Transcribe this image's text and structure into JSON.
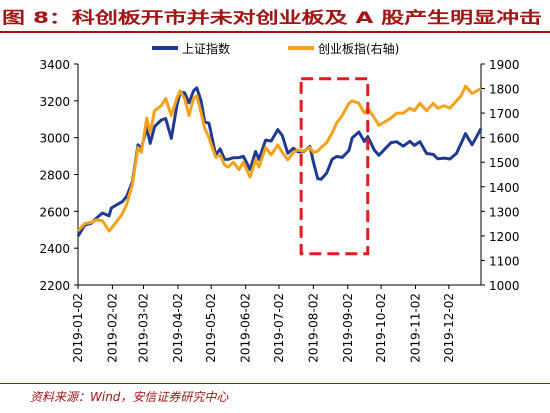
{
  "figure": {
    "label": "图 8：",
    "title": "科创板开市并未对创业板及 A 股产生明显冲击"
  },
  "source": "资料来源：Wind，安信证券研究中心",
  "colors": {
    "series_left": "#1f3a93",
    "series_right": "#f5a21b",
    "highlight_box": "#e41a1c",
    "title_accent": "#a31515"
  },
  "chart_data": {
    "type": "line",
    "x_ticks": [
      "2019-01-02",
      "2019-02-02",
      "2019-03-02",
      "2019-04-02",
      "2019-05-02",
      "2019-06-02",
      "2019-07-02",
      "2019-08-02",
      "2019-09-02",
      "2019-10-02",
      "2019-11-02",
      "2019-12-02"
    ],
    "y_left": {
      "ylim": [
        2200,
        3400
      ],
      "ticks": [
        2200,
        2400,
        2600,
        2800,
        3000,
        3200,
        3400
      ]
    },
    "y_right": {
      "ylim": [
        1000,
        1900
      ],
      "ticks": [
        1000,
        1100,
        1200,
        1300,
        1400,
        1500,
        1600,
        1700,
        1800,
        1900
      ]
    },
    "legend": {
      "position": "top",
      "entries": [
        "上证指数",
        "创业板指(右轴)"
      ]
    },
    "grid": false,
    "highlight": {
      "x_range": [
        "2019-07-22",
        "2019-09-20"
      ],
      "y_left_range": [
        2370,
        3320
      ]
    },
    "series": [
      {
        "name": "上证指数",
        "axis": "left",
        "color": "#1f3a93",
        "points": [
          [
            "2019-01-02",
            2465
          ],
          [
            "2019-01-08",
            2526
          ],
          [
            "2019-01-14",
            2535
          ],
          [
            "2019-01-18",
            2560
          ],
          [
            "2019-01-24",
            2591
          ],
          [
            "2019-01-30",
            2575
          ],
          [
            "2019-02-01",
            2618
          ],
          [
            "2019-02-11",
            2653
          ],
          [
            "2019-02-15",
            2682
          ],
          [
            "2019-02-20",
            2761
          ],
          [
            "2019-02-25",
            2961
          ],
          [
            "2019-02-28",
            2941
          ],
          [
            "2019-03-05",
            3055
          ],
          [
            "2019-03-08",
            2969
          ],
          [
            "2019-03-12",
            3060
          ],
          [
            "2019-03-18",
            3096
          ],
          [
            "2019-03-22",
            3104
          ],
          [
            "2019-03-27",
            2996
          ],
          [
            "2019-04-01",
            3171
          ],
          [
            "2019-04-04",
            3246
          ],
          [
            "2019-04-08",
            3244
          ],
          [
            "2019-04-12",
            3189
          ],
          [
            "2019-04-16",
            3254
          ],
          [
            "2019-04-19",
            3270
          ],
          [
            "2019-04-23",
            3198
          ],
          [
            "2019-04-26",
            3086
          ],
          [
            "2019-04-30",
            3078
          ],
          [
            "2019-05-06",
            2906
          ],
          [
            "2019-05-10",
            2939
          ],
          [
            "2019-05-14",
            2883
          ],
          [
            "2019-05-17",
            2882
          ],
          [
            "2019-05-22",
            2891
          ],
          [
            "2019-05-27",
            2892
          ],
          [
            "2019-05-31",
            2899
          ],
          [
            "2019-06-06",
            2827
          ],
          [
            "2019-06-11",
            2925
          ],
          [
            "2019-06-14",
            2882
          ],
          [
            "2019-06-20",
            2987
          ],
          [
            "2019-06-25",
            2982
          ],
          [
            "2019-07-01",
            3044
          ],
          [
            "2019-07-05",
            3011
          ],
          [
            "2019-07-10",
            2915
          ],
          [
            "2019-07-15",
            2942
          ],
          [
            "2019-07-19",
            2924
          ],
          [
            "2019-07-24",
            2923
          ],
          [
            "2019-07-30",
            2952
          ],
          [
            "2019-08-02",
            2868
          ],
          [
            "2019-08-06",
            2777
          ],
          [
            "2019-08-09",
            2774
          ],
          [
            "2019-08-14",
            2808
          ],
          [
            "2019-08-19",
            2883
          ],
          [
            "2019-08-23",
            2898
          ],
          [
            "2019-08-28",
            2893
          ],
          [
            "2019-09-03",
            2930
          ],
          [
            "2019-09-06",
            2999
          ],
          [
            "2019-09-12",
            3031
          ],
          [
            "2019-09-17",
            2979
          ],
          [
            "2019-09-20",
            3006
          ],
          [
            "2019-09-26",
            2932
          ],
          [
            "2019-09-30",
            2905
          ],
          [
            "2019-10-11",
            2973
          ],
          [
            "2019-10-16",
            2978
          ],
          [
            "2019-10-22",
            2954
          ],
          [
            "2019-10-28",
            2980
          ],
          [
            "2019-11-01",
            2958
          ],
          [
            "2019-11-06",
            2978
          ],
          [
            "2019-11-12",
            2914
          ],
          [
            "2019-11-18",
            2909
          ],
          [
            "2019-11-22",
            2885
          ],
          [
            "2019-11-28",
            2889
          ],
          [
            "2019-12-03",
            2884
          ],
          [
            "2019-12-09",
            2915
          ],
          [
            "2019-12-13",
            2968
          ],
          [
            "2019-12-17",
            3022
          ],
          [
            "2019-12-23",
            2962
          ],
          [
            "2019-12-27",
            3005
          ],
          [
            "2019-12-31",
            3050
          ]
        ]
      },
      {
        "name": "创业板指(右轴)",
        "axis": "right",
        "color": "#f5a21b",
        "points": [
          [
            "2019-01-02",
            1220
          ],
          [
            "2019-01-08",
            1250
          ],
          [
            "2019-01-14",
            1255
          ],
          [
            "2019-01-18",
            1265
          ],
          [
            "2019-01-24",
            1262
          ],
          [
            "2019-01-30",
            1220
          ],
          [
            "2019-02-01",
            1230
          ],
          [
            "2019-02-11",
            1290
          ],
          [
            "2019-02-15",
            1330
          ],
          [
            "2019-02-20",
            1410
          ],
          [
            "2019-02-25",
            1560
          ],
          [
            "2019-02-28",
            1540
          ],
          [
            "2019-03-05",
            1680
          ],
          [
            "2019-03-08",
            1620
          ],
          [
            "2019-03-12",
            1710
          ],
          [
            "2019-03-18",
            1730
          ],
          [
            "2019-03-22",
            1760
          ],
          [
            "2019-03-27",
            1690
          ],
          [
            "2019-04-01",
            1760
          ],
          [
            "2019-04-04",
            1790
          ],
          [
            "2019-04-08",
            1760
          ],
          [
            "2019-04-12",
            1690
          ],
          [
            "2019-04-16",
            1760
          ],
          [
            "2019-04-19",
            1770
          ],
          [
            "2019-04-23",
            1700
          ],
          [
            "2019-04-26",
            1640
          ],
          [
            "2019-04-30",
            1600
          ],
          [
            "2019-05-06",
            1520
          ],
          [
            "2019-05-10",
            1530
          ],
          [
            "2019-05-14",
            1490
          ],
          [
            "2019-05-17",
            1480
          ],
          [
            "2019-05-22",
            1500
          ],
          [
            "2019-05-27",
            1470
          ],
          [
            "2019-05-31",
            1500
          ],
          [
            "2019-06-06",
            1440
          ],
          [
            "2019-06-11",
            1510
          ],
          [
            "2019-06-14",
            1480
          ],
          [
            "2019-06-20",
            1560
          ],
          [
            "2019-06-25",
            1530
          ],
          [
            "2019-07-01",
            1570
          ],
          [
            "2019-07-05",
            1540
          ],
          [
            "2019-07-10",
            1510
          ],
          [
            "2019-07-15",
            1540
          ],
          [
            "2019-07-19",
            1550
          ],
          [
            "2019-07-24",
            1545
          ],
          [
            "2019-07-30",
            1560
          ],
          [
            "2019-08-02",
            1540
          ],
          [
            "2019-08-06",
            1545
          ],
          [
            "2019-08-09",
            1560
          ],
          [
            "2019-08-14",
            1580
          ],
          [
            "2019-08-19",
            1620
          ],
          [
            "2019-08-23",
            1660
          ],
          [
            "2019-08-28",
            1690
          ],
          [
            "2019-09-03",
            1740
          ],
          [
            "2019-09-06",
            1750
          ],
          [
            "2019-09-12",
            1740
          ],
          [
            "2019-09-17",
            1700
          ],
          [
            "2019-09-20",
            1720
          ],
          [
            "2019-09-26",
            1680
          ],
          [
            "2019-09-30",
            1650
          ],
          [
            "2019-10-11",
            1680
          ],
          [
            "2019-10-16",
            1700
          ],
          [
            "2019-10-22",
            1700
          ],
          [
            "2019-10-28",
            1720
          ],
          [
            "2019-11-01",
            1710
          ],
          [
            "2019-11-06",
            1740
          ],
          [
            "2019-11-12",
            1710
          ],
          [
            "2019-11-18",
            1740
          ],
          [
            "2019-11-22",
            1720
          ],
          [
            "2019-11-28",
            1730
          ],
          [
            "2019-12-03",
            1720
          ],
          [
            "2019-12-09",
            1750
          ],
          [
            "2019-12-13",
            1770
          ],
          [
            "2019-12-17",
            1810
          ],
          [
            "2019-12-23",
            1780
          ],
          [
            "2019-12-27",
            1790
          ],
          [
            "2019-12-31",
            1800
          ]
        ]
      }
    ]
  }
}
